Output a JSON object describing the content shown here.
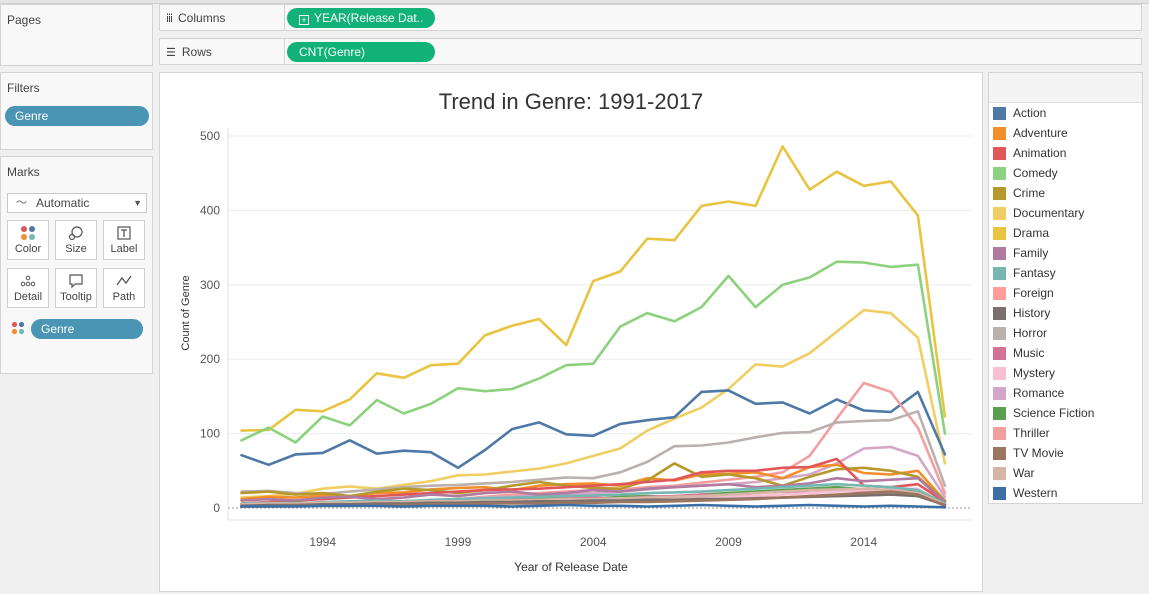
{
  "cards": {
    "pages": "Pages",
    "filters": "Filters",
    "marks": "Marks"
  },
  "filters": {
    "pill": "Genre"
  },
  "marks": {
    "mark_type": "Automatic",
    "buttons": [
      "Color",
      "Size",
      "Label",
      "Detail",
      "Tooltip",
      "Path"
    ],
    "color_pill": "Genre"
  },
  "shelves": {
    "columns_label": "Columns",
    "columns_pill": "YEAR(Release Dat..",
    "rows_label": "Rows",
    "rows_pill": "CNT(Genre)"
  },
  "legend": {
    "items": [
      {
        "label": "Action",
        "color": "#4e79a7"
      },
      {
        "label": "Adventure",
        "color": "#f28e2b"
      },
      {
        "label": "Animation",
        "color": "#e15759"
      },
      {
        "label": "Comedy",
        "color": "#8cd17d"
      },
      {
        "label": "Crime",
        "color": "#b6992d"
      },
      {
        "label": "Documentary",
        "color": "#f1ce63"
      },
      {
        "label": "Drama",
        "color": "#e8c440"
      },
      {
        "label": "Family",
        "color": "#b07aa1"
      },
      {
        "label": "Fantasy",
        "color": "#76b7b2"
      },
      {
        "label": "Foreign",
        "color": "#ff9d9a"
      },
      {
        "label": "History",
        "color": "#79706e"
      },
      {
        "label": "Horror",
        "color": "#bab0ac"
      },
      {
        "label": "Music",
        "color": "#d37295"
      },
      {
        "label": "Mystery",
        "color": "#fabfd2"
      },
      {
        "label": "Romance",
        "color": "#d4a6c8"
      },
      {
        "label": "Science Fiction",
        "color": "#59a14f"
      },
      {
        "label": "Thriller",
        "color": "#f49f9f"
      },
      {
        "label": "TV Movie",
        "color": "#9d7660"
      },
      {
        "label": "War",
        "color": "#d7b5a6"
      },
      {
        "label": "Western",
        "color": "#3b6ea5"
      }
    ]
  },
  "chart_data": {
    "type": "line",
    "title": "Trend in Genre: 1991-2017",
    "xlabel": "Year of Release Date",
    "ylabel": "Count of Genre",
    "xlim": [
      1990.5,
      2018
    ],
    "ylim": [
      0,
      500
    ],
    "x_ticks": [
      1994,
      1999,
      2004,
      2009,
      2014
    ],
    "y_ticks": [
      0,
      100,
      200,
      300,
      400,
      500
    ],
    "grid": true,
    "x": [
      1991,
      1992,
      1993,
      1994,
      1995,
      1996,
      1997,
      1998,
      1999,
      2000,
      2001,
      2002,
      2003,
      2004,
      2005,
      2006,
      2007,
      2008,
      2009,
      2010,
      2011,
      2012,
      2013,
      2014,
      2015,
      2016,
      2017
    ],
    "series": [
      {
        "name": "Drama",
        "values": [
          104,
          105,
          132,
          130,
          146,
          181,
          175,
          192,
          194,
          232,
          245,
          254,
          219,
          305,
          318,
          362,
          360,
          406,
          412,
          406,
          486,
          428,
          452,
          433,
          439,
          393,
          123
        ]
      },
      {
        "name": "Comedy",
        "values": [
          91,
          108,
          88,
          123,
          111,
          145,
          127,
          140,
          161,
          157,
          160,
          174,
          192,
          194,
          244,
          262,
          251,
          270,
          312,
          270,
          300,
          310,
          331,
          330,
          324,
          327,
          100
        ]
      },
      {
        "name": "Documentary",
        "values": [
          14,
          16,
          19,
          26,
          29,
          26,
          31,
          36,
          44,
          45,
          49,
          53,
          60,
          70,
          80,
          104,
          120,
          135,
          160,
          193,
          190,
          208,
          237,
          266,
          262,
          229,
          60
        ]
      },
      {
        "name": "Action",
        "values": [
          71,
          58,
          72,
          74,
          91,
          73,
          77,
          75,
          54,
          78,
          106,
          115,
          99,
          97,
          113,
          118,
          122,
          156,
          158,
          140,
          142,
          127,
          146,
          131,
          129,
          156,
          72
        ]
      },
      {
        "name": "Thriller",
        "values": [
          3,
          5,
          6,
          6,
          8,
          8,
          9,
          10,
          12,
          15,
          18,
          20,
          22,
          24,
          25,
          28,
          30,
          34,
          38,
          42,
          48,
          70,
          120,
          168,
          156,
          108,
          20
        ]
      },
      {
        "name": "Horror",
        "values": [
          22,
          23,
          20,
          19,
          22,
          25,
          28,
          30,
          31,
          33,
          35,
          38,
          41,
          40,
          48,
          62,
          83,
          84,
          88,
          95,
          101,
          102,
          115,
          117,
          118,
          130,
          30
        ]
      },
      {
        "name": "Romance",
        "values": [
          4,
          5,
          5,
          6,
          7,
          8,
          9,
          10,
          12,
          14,
          15,
          17,
          19,
          20,
          22,
          25,
          28,
          30,
          32,
          35,
          40,
          45,
          60,
          80,
          82,
          70,
          15
        ]
      },
      {
        "name": "Adventure",
        "values": [
          12,
          15,
          14,
          17,
          16,
          20,
          21,
          25,
          27,
          28,
          24,
          30,
          32,
          33,
          30,
          40,
          37,
          45,
          46,
          48,
          40,
          55,
          58,
          47,
          45,
          50,
          10
        ]
      },
      {
        "name": "Crime",
        "values": [
          20,
          22,
          18,
          20,
          16,
          22,
          26,
          24,
          20,
          24,
          30,
          35,
          30,
          27,
          26,
          37,
          60,
          42,
          45,
          40,
          30,
          42,
          52,
          54,
          50,
          42,
          10
        ]
      },
      {
        "name": "Animation",
        "values": [
          6,
          8,
          10,
          12,
          14,
          16,
          18,
          20,
          22,
          24,
          25,
          26,
          28,
          30,
          32,
          35,
          38,
          48,
          50,
          50,
          54,
          55,
          66,
          30,
          28,
          32,
          8
        ]
      },
      {
        "name": "Family",
        "values": [
          10,
          12,
          10,
          14,
          15,
          12,
          14,
          18,
          16,
          20,
          22,
          18,
          20,
          24,
          22,
          26,
          28,
          30,
          32,
          28,
          30,
          33,
          40,
          36,
          38,
          40,
          8
        ]
      },
      {
        "name": "Science Fiction",
        "values": [
          5,
          6,
          7,
          6,
          8,
          7,
          9,
          10,
          11,
          12,
          10,
          13,
          14,
          12,
          15,
          16,
          14,
          18,
          20,
          22,
          24,
          26,
          28,
          25,
          24,
          22,
          5
        ]
      },
      {
        "name": "Music",
        "values": [
          4,
          5,
          6,
          5,
          7,
          8,
          9,
          10,
          9,
          11,
          12,
          10,
          13,
          14,
          12,
          15,
          16,
          18,
          17,
          20,
          22,
          20,
          24,
          22,
          20,
          18,
          4
        ]
      },
      {
        "name": "Mystery",
        "values": [
          3,
          4,
          4,
          5,
          5,
          6,
          6,
          7,
          8,
          7,
          9,
          10,
          9,
          11,
          12,
          13,
          12,
          14,
          15,
          16,
          18,
          20,
          22,
          24,
          25,
          26,
          5
        ]
      },
      {
        "name": "Fantasy",
        "values": [
          6,
          7,
          6,
          8,
          9,
          10,
          9,
          11,
          12,
          13,
          14,
          15,
          16,
          17,
          18,
          20,
          21,
          22,
          24,
          26,
          28,
          30,
          32,
          30,
          28,
          24,
          6
        ]
      },
      {
        "name": "Foreign",
        "values": [
          2,
          3,
          3,
          4,
          4,
          5,
          5,
          6,
          6,
          7,
          7,
          8,
          8,
          9,
          9,
          10,
          10,
          11,
          12,
          13,
          14,
          15,
          16,
          17,
          18,
          20,
          4
        ]
      },
      {
        "name": "War",
        "values": [
          5,
          6,
          6,
          7,
          7,
          8,
          8,
          9,
          9,
          10,
          10,
          11,
          12,
          12,
          13,
          14,
          15,
          16,
          18,
          20,
          22,
          24,
          25,
          26,
          24,
          20,
          5
        ]
      },
      {
        "name": "History",
        "values": [
          3,
          4,
          4,
          5,
          5,
          6,
          6,
          7,
          7,
          8,
          8,
          9,
          9,
          10,
          10,
          11,
          11,
          12,
          12,
          13,
          14,
          15,
          16,
          17,
          18,
          16,
          4
        ]
      },
      {
        "name": "TV Movie",
        "values": [
          2,
          2,
          3,
          3,
          3,
          4,
          4,
          5,
          5,
          6,
          6,
          6,
          7,
          7,
          8,
          8,
          9,
          10,
          11,
          12,
          14,
          16,
          18,
          20,
          22,
          18,
          3
        ]
      },
      {
        "name": "Western",
        "values": [
          2,
          2,
          2,
          3,
          3,
          3,
          2,
          3,
          3,
          3,
          2,
          3,
          4,
          3,
          3,
          2,
          3,
          4,
          3,
          2,
          3,
          4,
          3,
          2,
          3,
          2,
          1
        ]
      }
    ]
  }
}
